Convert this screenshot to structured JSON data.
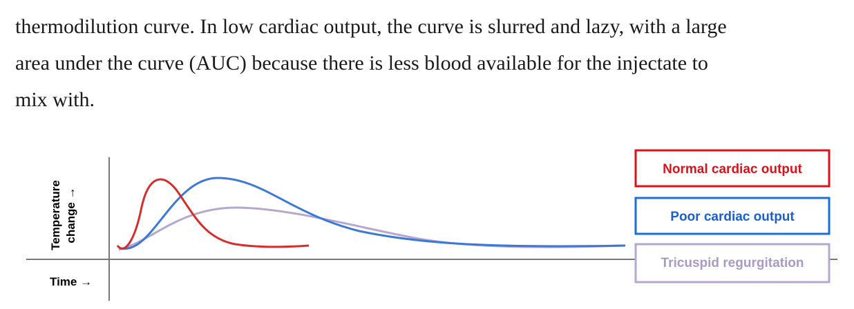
{
  "paragraph": {
    "lines": [
      "thermodilution curve. In low cardiac output, the curve is slurred and lazy, with a large",
      "area under the curve (AUC) because there is less blood available for the injectate to",
      "mix with."
    ]
  },
  "figure": {
    "y_label": [
      "Temperature",
      "change →"
    ],
    "x_label": "Time →",
    "legend": [
      "Normal cardiac output",
      "Poor cardiac output",
      "Tricuspid regurgitation"
    ]
  }
}
